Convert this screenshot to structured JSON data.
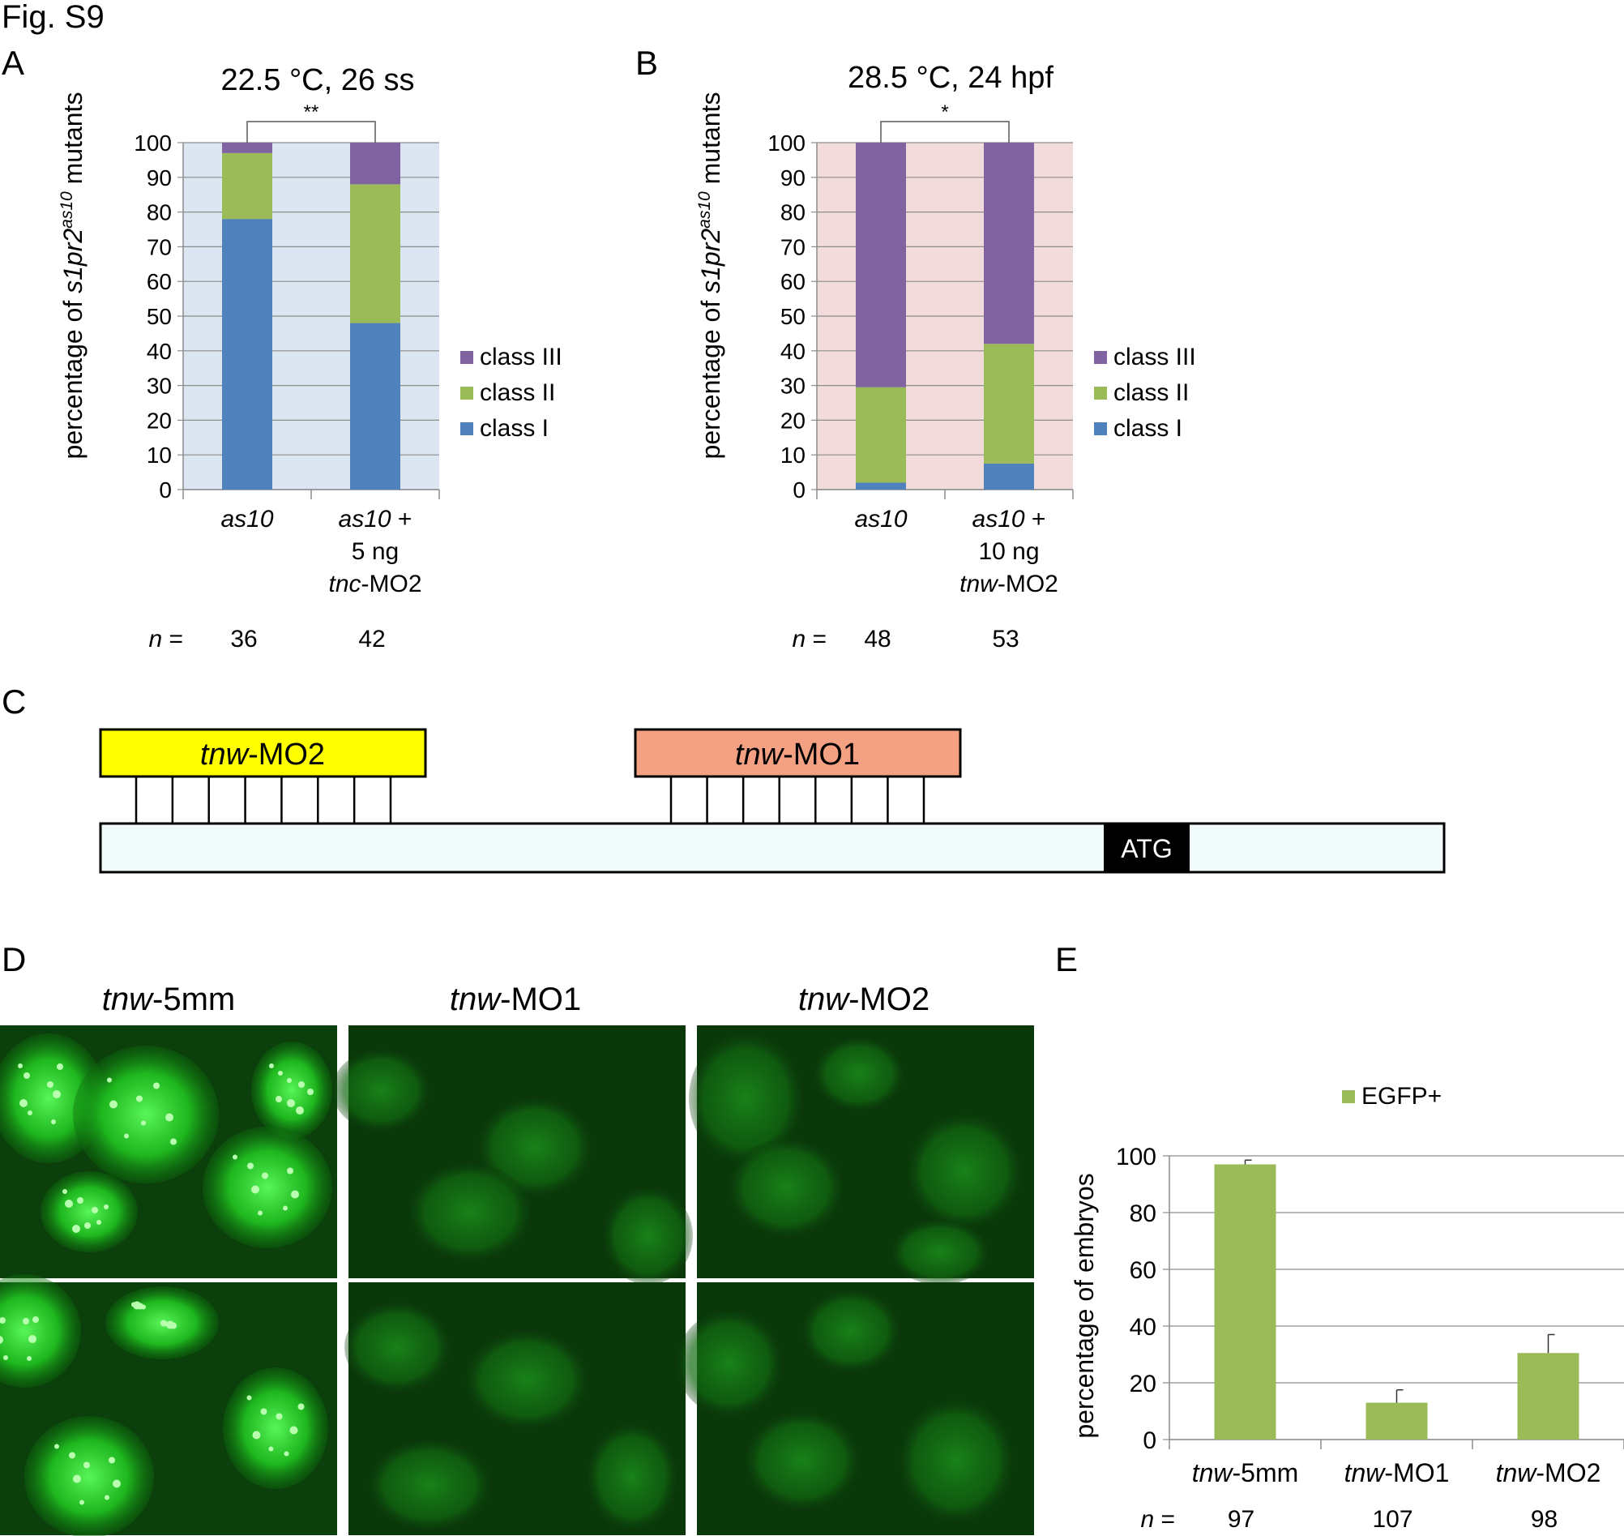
{
  "figure_label": "Fig. S9",
  "panel_labels": {
    "A": "A",
    "B": "B",
    "C": "C",
    "D": "D",
    "E": "E"
  },
  "colors": {
    "class_I": "#4f81bd",
    "class_II": "#9bbb59",
    "class_III": "#8064a2",
    "bg_A": "#dce6f2",
    "bg_B": "#f2dcdb",
    "egfp": "#9bbb59",
    "mo2_box": "#ffff00",
    "mo1_box": "#f4a083",
    "strand": "#f2fbfc",
    "fluor_bright": "#1ecf1e",
    "fluor_dim": "#0a6a0a"
  },
  "chart_data": [
    {
      "type": "bar",
      "stacked": true,
      "panel": "A",
      "title": "22.5 °C, 26 ss",
      "ylabel": {
        "pre": "percentage of ",
        "gene": "s1pr2",
        "sup": "as10",
        "post": " mutants"
      },
      "ylim": [
        0,
        100
      ],
      "yticks": [
        "0",
        "10",
        "20",
        "30",
        "40",
        "50",
        "60",
        "70",
        "80",
        "90",
        "100"
      ],
      "categories": [
        {
          "lines": [
            {
              "it": "as10",
              "rt": ""
            }
          ]
        },
        {
          "lines": [
            {
              "it": "as10",
              "rt": " +"
            },
            {
              "it": "",
              "rt": "5 ng"
            },
            {
              "it": "tnc",
              "rt": "-MO2"
            }
          ]
        }
      ],
      "n_label": {
        "it": "n",
        "rt": " ="
      },
      "n": [
        "36",
        "42"
      ],
      "significance": "**",
      "series": [
        {
          "name": "class I",
          "values": [
            78,
            48
          ]
        },
        {
          "name": "class II",
          "values": [
            19,
            40
          ]
        },
        {
          "name": "class III",
          "values": [
            3,
            12
          ]
        }
      ],
      "legend": [
        "class III",
        "class II",
        "class I"
      ],
      "legend_position": "right",
      "grid": true
    },
    {
      "type": "bar",
      "stacked": true,
      "panel": "B",
      "title": "28.5 °C, 24 hpf",
      "ylabel": {
        "pre": "percentage of ",
        "gene": "s1pr2",
        "sup": "as10",
        "post": " mutants"
      },
      "ylim": [
        0,
        100
      ],
      "yticks": [
        "0",
        "10",
        "20",
        "30",
        "40",
        "50",
        "60",
        "70",
        "80",
        "90",
        "100"
      ],
      "categories": [
        {
          "lines": [
            {
              "it": "as10",
              "rt": ""
            }
          ]
        },
        {
          "lines": [
            {
              "it": "as10",
              "rt": " +"
            },
            {
              "it": "",
              "rt": "10 ng"
            },
            {
              "it": "tnw",
              "rt": "-MO2"
            }
          ]
        }
      ],
      "n_label": {
        "it": "n",
        "rt": " ="
      },
      "n": [
        "48",
        "53"
      ],
      "significance": "*",
      "series": [
        {
          "name": "class I",
          "values": [
            2,
            7.5
          ]
        },
        {
          "name": "class II",
          "values": [
            27.5,
            34.5
          ]
        },
        {
          "name": "class III",
          "values": [
            70.5,
            58
          ]
        }
      ],
      "legend": [
        "class III",
        "class II",
        "class I"
      ],
      "legend_position": "right",
      "grid": true
    },
    {
      "type": "bar",
      "panel": "E",
      "ylabel": "percentage of embryos",
      "ylim": [
        0,
        100
      ],
      "yticks": [
        "0",
        "20",
        "40",
        "60",
        "80",
        "100"
      ],
      "categories": [
        {
          "it": "tnw",
          "rt": "-5mm"
        },
        {
          "it": "tnw",
          "rt": "-MO1"
        },
        {
          "it": "tnw",
          "rt": "-MO2"
        }
      ],
      "series": [
        {
          "name": "EGFP+",
          "values": [
            97,
            13,
            30.5
          ],
          "error": [
            1.5,
            4.5,
            6.5
          ]
        }
      ],
      "n_label": {
        "it": "n",
        "rt": " ="
      },
      "n": [
        "97",
        "107",
        "98"
      ],
      "legend_position": "top",
      "grid": true
    }
  ],
  "diagram": {
    "mo2_label": {
      "it": "tnw",
      "rt": "-MO2"
    },
    "mo1_label": {
      "it": "tnw",
      "rt": "-MO1"
    },
    "atg_label": "ATG",
    "mo2_ticks": 8,
    "mo1_ticks": 8
  },
  "micrographs": {
    "headers": [
      {
        "it": "tnw",
        "rt": "-5mm"
      },
      {
        "it": "tnw",
        "rt": "-MO1"
      },
      {
        "it": "tnw",
        "rt": "-MO2"
      }
    ]
  }
}
